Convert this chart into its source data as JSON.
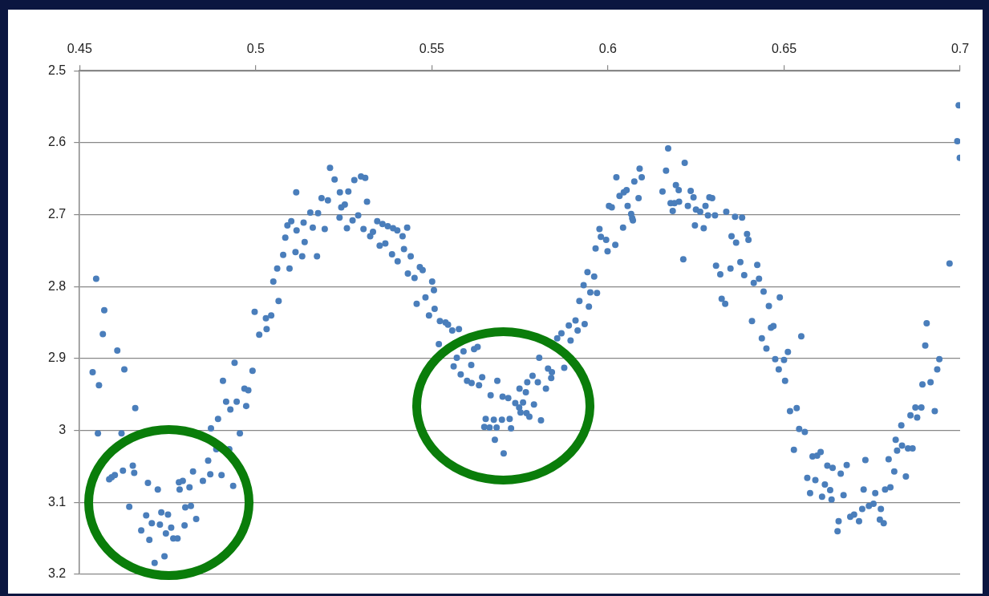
{
  "chart_data": {
    "type": "scatter",
    "color": "#4a7ebb",
    "marker": "circle",
    "grid": "y",
    "xlim": [
      0.45,
      0.7
    ],
    "xticks": [
      0.45,
      0.5,
      0.55,
      0.6,
      0.65,
      0.7
    ],
    "ylim": [
      3.2,
      2.5
    ],
    "yticks": [
      2.5,
      2.6,
      2.7,
      2.8,
      2.9,
      3,
      3.1,
      3.2
    ],
    "x": [
      0.4537,
      0.4547,
      0.4552,
      0.4555,
      0.4566,
      0.457,
      0.4584,
      0.4591,
      0.46,
      0.4607,
      0.4619,
      0.4623,
      0.4627,
      0.4641,
      0.4651,
      0.4655,
      0.4658,
      0.4675,
      0.4689,
      0.4694,
      0.4698,
      0.4705,
      0.4713,
      0.4722,
      0.4728,
      0.4732,
      0.4741,
      0.4745,
      0.4751,
      0.476,
      0.4766,
      0.4778,
      0.4782,
      0.4784,
      0.4793,
      0.4798,
      0.48,
      0.4812,
      0.4816,
      0.4822,
      0.4831,
      0.485,
      0.4865,
      0.4871,
      0.4873,
      0.4888,
      0.4893,
      0.4903,
      0.4907,
      0.4916,
      0.4925,
      0.4928,
      0.4936,
      0.494,
      0.4946,
      0.4955,
      0.4968,
      0.4973,
      0.4979,
      0.4991,
      0.4997,
      0.501,
      0.5029,
      0.5031,
      0.5044,
      0.505,
      0.5061,
      0.5065,
      0.5078,
      0.5084,
      0.509,
      0.5096,
      0.5101,
      0.5113,
      0.5115,
      0.5116,
      0.5132,
      0.5136,
      0.5139,
      0.5155,
      0.5162,
      0.5174,
      0.5177,
      0.5187,
      0.5196,
      0.5205,
      0.5211,
      0.5224,
      0.5238,
      0.5239,
      0.5243,
      0.5253,
      0.5259,
      0.5263,
      0.5275,
      0.528,
      0.5291,
      0.5299,
      0.5306,
      0.5311,
      0.5316,
      0.5325,
      0.5333,
      0.5345,
      0.5352,
      0.536,
      0.5368,
      0.5375,
      0.5387,
      0.539,
      0.5402,
      0.5403,
      0.5417,
      0.5421,
      0.543,
      0.5432,
      0.544,
      0.5451,
      0.5457,
      0.5466,
      0.5474,
      0.5482,
      0.5492,
      0.5501,
      0.5506,
      0.5508,
      0.552,
      0.5523,
      0.5539,
      0.5546,
      0.5558,
      0.5562,
      0.5571,
      0.5577,
      0.5582,
      0.559,
      0.56,
      0.5612,
      0.5613,
      0.562,
      0.563,
      0.5634,
      0.5643,
      0.5649,
      0.5653,
      0.5664,
      0.5667,
      0.5676,
      0.5679,
      0.5684,
      0.5686,
      0.5699,
      0.5701,
      0.5704,
      0.5717,
      0.5721,
      0.5725,
      0.5737,
      0.5748,
      0.5749,
      0.5752,
      0.5759,
      0.5767,
      0.5769,
      0.5771,
      0.5777,
      0.5786,
      0.579,
      0.5801,
      0.5805,
      0.581,
      0.5824,
      0.583,
      0.5839,
      0.5841,
      0.5856,
      0.5868,
      0.5876,
      0.5889,
      0.5894,
      0.5908,
      0.5914,
      0.5919,
      0.5931,
      0.5934,
      0.5942,
      0.5946,
      0.595,
      0.5961,
      0.5965,
      0.5969,
      0.5976,
      0.598,
      0.5995,
      0.5999,
      0.6003,
      0.6011,
      0.6021,
      0.6024,
      0.6033,
      0.6043,
      0.6045,
      0.6053,
      0.6056,
      0.6066,
      0.6069,
      0.6071,
      0.6075,
      0.6087,
      0.609,
      0.6096,
      0.6155,
      0.6165,
      0.6171,
      0.6178,
      0.6184,
      0.6189,
      0.6193,
      0.6201,
      0.6202,
      0.6214,
      0.6218,
      0.6227,
      0.6235,
      0.6243,
      0.6247,
      0.625,
      0.6262,
      0.6272,
      0.6277,
      0.6284,
      0.6288,
      0.6296,
      0.6304,
      0.6307,
      0.6319,
      0.6323,
      0.6333,
      0.6336,
      0.6348,
      0.6351,
      0.6361,
      0.6364,
      0.6376,
      0.6381,
      0.6387,
      0.6395,
      0.6399,
      0.6409,
      0.6414,
      0.6424,
      0.6429,
      0.6437,
      0.6442,
      0.645,
      0.6457,
      0.6463,
      0.647,
      0.6475,
      0.6485,
      0.6488,
      0.65,
      0.6503,
      0.6511,
      0.6517,
      0.6528,
      0.6536,
      0.6543,
      0.6549,
      0.6559,
      0.6566,
      0.6574,
      0.6581,
      0.6589,
      0.6594,
      0.6604,
      0.6608,
      0.6616,
      0.6623,
      0.6631,
      0.6635,
      0.6638,
      0.6652,
      0.6655,
      0.6661,
      0.6669,
      0.6678,
      0.6688,
      0.6699,
      0.6713,
      0.6722,
      0.6726,
      0.6731,
      0.6741,
      0.6754,
      0.6759,
      0.6772,
      0.6775,
      0.6783,
      0.6787,
      0.6797,
      0.6802,
      0.6813,
      0.6817,
      0.6821,
      0.6833,
      0.6835,
      0.6846,
      0.6852,
      0.6859,
      0.6865,
      0.6873,
      0.6878,
      0.689,
      0.6893,
      0.6901,
      0.6905,
      0.6916,
      0.6928,
      0.6935,
      0.6941,
      0.697,
      0.6992,
      0.6996,
      0.6999
    ],
    "values": [
      2.919,
      2.789,
      3.004,
      2.937,
      2.866,
      2.833,
      3.068,
      3.065,
      3.062,
      2.889,
      3.004,
      3.056,
      2.915,
      3.106,
      3.049,
      3.059,
      2.969,
      3.139,
      3.118,
      3.073,
      3.152,
      3.129,
      3.184,
      3.082,
      3.131,
      3.114,
      3.175,
      3.143,
      3.117,
      3.135,
      3.15,
      3.15,
      3.072,
      3.082,
      3.07,
      3.132,
      3.107,
      3.079,
      3.105,
      3.057,
      3.123,
      3.07,
      3.042,
      3.061,
      2.997,
      3.026,
      2.984,
      3.062,
      2.931,
      2.96,
      3.026,
      2.971,
      3.077,
      2.906,
      2.96,
      3.004,
      2.942,
      2.966,
      2.944,
      2.917,
      2.835,
      2.867,
      2.844,
      2.859,
      2.84,
      2.793,
      2.775,
      2.82,
      2.756,
      2.732,
      2.715,
      2.775,
      2.709,
      2.752,
      2.669,
      2.722,
      2.758,
      2.711,
      2.738,
      2.697,
      2.718,
      2.758,
      2.698,
      2.677,
      2.72,
      2.68,
      2.635,
      2.651,
      2.704,
      2.669,
      2.69,
      2.686,
      2.719,
      2.668,
      2.708,
      2.652,
      2.701,
      2.647,
      2.72,
      2.649,
      2.682,
      2.73,
      2.724,
      2.709,
      2.743,
      2.713,
      2.74,
      2.716,
      2.755,
      2.719,
      2.722,
      2.765,
      2.73,
      2.748,
      2.718,
      2.782,
      2.758,
      2.788,
      2.824,
      2.773,
      2.777,
      2.815,
      2.84,
      2.793,
      2.805,
      2.831,
      2.88,
      2.848,
      2.85,
      2.853,
      2.861,
      2.911,
      2.899,
      2.859,
      2.922,
      2.89,
      2.931,
      2.909,
      2.934,
      2.887,
      2.884,
      2.937,
      2.926,
      2.995,
      2.984,
      2.996,
      2.951,
      2.985,
      3.013,
      2.996,
      2.931,
      2.985,
      2.953,
      3.032,
      2.955,
      2.984,
      2.997,
      2.962,
      2.968,
      2.942,
      2.975,
      2.961,
      2.947,
      2.976,
      2.933,
      2.981,
      2.924,
      2.964,
      2.933,
      2.899,
      2.986,
      2.942,
      2.914,
      2.927,
      2.919,
      2.872,
      2.865,
      2.913,
      2.854,
      2.875,
      2.847,
      2.861,
      2.82,
      2.798,
      2.852,
      2.78,
      2.828,
      2.808,
      2.786,
      2.747,
      2.809,
      2.72,
      2.731,
      2.735,
      2.751,
      2.688,
      2.69,
      2.742,
      2.648,
      2.674,
      2.718,
      2.669,
      2.666,
      2.688,
      2.699,
      2.705,
      2.708,
      2.654,
      2.677,
      2.636,
      2.648,
      2.668,
      2.639,
      2.608,
      2.684,
      2.695,
      2.684,
      2.659,
      2.666,
      2.682,
      2.762,
      2.628,
      2.688,
      2.667,
      2.676,
      2.715,
      2.693,
      2.696,
      2.719,
      2.688,
      2.701,
      2.676,
      2.677,
      2.701,
      2.771,
      2.783,
      2.817,
      2.824,
      2.696,
      2.775,
      2.73,
      2.703,
      2.739,
      2.766,
      2.704,
      2.784,
      2.727,
      2.735,
      2.848,
      2.795,
      2.77,
      2.789,
      2.872,
      2.807,
      2.886,
      2.827,
      2.857,
      2.855,
      2.901,
      2.915,
      2.815,
      2.902,
      2.931,
      2.891,
      2.973,
      3.027,
      2.969,
      2.998,
      2.869,
      3.002,
      3.066,
      3.087,
      3.036,
      3.069,
      3.035,
      3.03,
      3.092,
      3.075,
      3.049,
      3.083,
      3.096,
      3.052,
      3.14,
      3.126,
      3.06,
      3.09,
      3.048,
      3.12,
      3.117,
      3.126,
      3.109,
      3.082,
      3.041,
      3.105,
      3.102,
      3.087,
      3.124,
      3.109,
      3.129,
      3.082,
      3.04,
      3.079,
      3.057,
      3.013,
      3.028,
      2.993,
      3.021,
      3.064,
      3.025,
      2.979,
      3.025,
      2.968,
      2.982,
      2.968,
      2.936,
      2.882,
      2.851,
      2.933,
      2.973,
      2.915,
      2.901,
      2.768,
      2.598,
      2.548,
      2.621
    ]
  }
}
